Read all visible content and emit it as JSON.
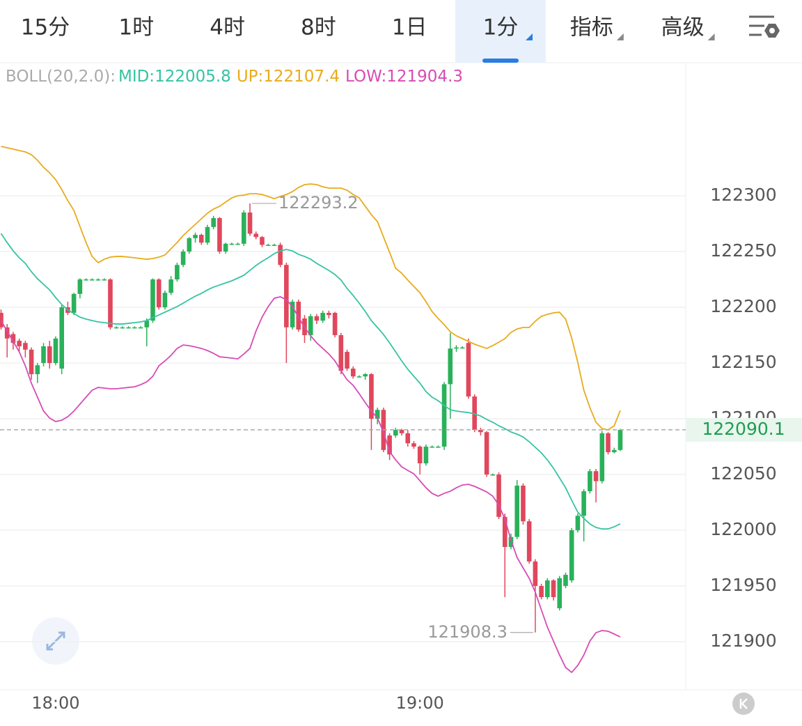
{
  "tabs": {
    "items": [
      {
        "label": "15分",
        "dropdown": false
      },
      {
        "label": "1时",
        "dropdown": false
      },
      {
        "label": "4时",
        "dropdown": false
      },
      {
        "label": "8时",
        "dropdown": false
      },
      {
        "label": "1日",
        "dropdown": false
      },
      {
        "label": "1分",
        "dropdown": true
      },
      {
        "label": "指标",
        "dropdown": true
      },
      {
        "label": "高级",
        "dropdown": true
      }
    ],
    "active": 5
  },
  "chart_data": {
    "type": "candlestick",
    "indicator": "BOLL(20,2.0):",
    "categories": [
      null,
      null,
      null,
      null,
      null,
      null,
      null,
      null,
      null,
      "18:00",
      null,
      null,
      null,
      null,
      null,
      null,
      null,
      null,
      null,
      null,
      null,
      null,
      null,
      null,
      null,
      null,
      null,
      null,
      null,
      null,
      null,
      null,
      null,
      null,
      null,
      null,
      null,
      null,
      null,
      null,
      null,
      null,
      null,
      null,
      null,
      null,
      null,
      null,
      null,
      null,
      null,
      null,
      null,
      null,
      null,
      null,
      null,
      null,
      null,
      null,
      null,
      null,
      null,
      null,
      null,
      null,
      null,
      null,
      null,
      "19:00",
      null,
      null,
      null,
      null,
      null,
      null,
      null,
      null,
      null,
      null,
      null,
      null,
      null,
      null,
      null,
      null,
      null,
      null,
      null,
      null,
      null,
      null,
      null,
      null,
      null,
      null,
      null,
      null,
      null,
      null,
      null,
      null,
      null
    ],
    "open": [
      122195,
      122182,
      122176,
      122170,
      122168,
      122162,
      122140,
      122150,
      122165,
      122150,
      122145,
      122200,
      122195,
      122212,
      122225,
      122225,
      122225,
      122225,
      122225,
      122182,
      122182,
      122182,
      122182,
      122182,
      122182,
      122188,
      122225,
      122200,
      122213,
      122225,
      122238,
      122250,
      122262,
      122265,
      122258,
      122272,
      122280,
      122250,
      122257,
      122257,
      122257,
      122285,
      122266,
      122263,
      122256,
      122256,
      122256,
      122238,
      122182,
      122205,
      122190,
      122175,
      122192,
      122188,
      122195,
      122195,
      122175,
      122160,
      122145,
      122138,
      122138,
      122140,
      122100,
      122108,
      122085,
      122085,
      122090,
      122087,
      122078,
      122075,
      122060,
      122075,
      122075,
      122075,
      122131,
      122163,
      122164,
      122168,
      122120,
      122090,
      122088,
      122050,
      122050,
      122012,
      121985,
      121994,
      122040,
      122008,
      121972,
      121950,
      121940,
      121955,
      121930,
      121950,
      121955,
      122000,
      122013,
      122035,
      122053,
      122044,
      122087,
      122070,
      122072
    ],
    "high": [
      122198,
      122185,
      122178,
      122172,
      122170,
      122164,
      122150,
      122168,
      122170,
      122174,
      122202,
      122205,
      122213,
      122226,
      122226,
      122226,
      122226,
      122226,
      122226,
      122183,
      122183,
      122183,
      122183,
      122183,
      122190,
      122226,
      122226,
      122215,
      122228,
      122240,
      122252,
      122263,
      122267,
      122266,
      122274,
      122282,
      122281,
      122258,
      122258,
      122258,
      122287,
      122293.2,
      122268,
      122264,
      122257,
      122257,
      122258,
      122240,
      122207,
      122207,
      122193,
      122194,
      122194,
      122197,
      122197,
      122196,
      122177,
      122162,
      122147,
      122139,
      122141,
      122141,
      122110,
      122110,
      122087,
      122092,
      122091,
      122090,
      122080,
      122076,
      122077,
      122076,
      122076,
      122133,
      122177,
      122166,
      122165,
      122172,
      122122,
      122092,
      122089,
      122051,
      122052,
      122015,
      121997,
      122045,
      122042,
      122010,
      121974,
      121952,
      121957,
      121956,
      121959,
      121962,
      122002,
      122015,
      122037,
      122055,
      122055,
      122089,
      122088,
      122074,
      122091
    ],
    "low": [
      122180,
      122155,
      122162,
      122160,
      122155,
      122135,
      122132,
      122147,
      122145,
      122148,
      122140,
      122193,
      122193,
      122208,
      122224,
      122224,
      122224,
      122224,
      122180,
      122181,
      122181,
      122181,
      122181,
      122181,
      122165,
      122186,
      122198,
      122198,
      122211,
      122223,
      122236,
      122248,
      122258,
      122256,
      122256,
      122270,
      122248,
      122248,
      122256,
      122256,
      122255,
      122264,
      122261,
      122254,
      122255,
      122255,
      122236,
      122150,
      122180,
      122178,
      122168,
      122170,
      122185,
      122186,
      122190,
      122173,
      122140,
      122143,
      122136,
      122137,
      122135,
      122072,
      122095,
      122070,
      122063,
      122083,
      122085,
      122075,
      122073,
      122050,
      122058,
      122074,
      122074,
      122072,
      122100,
      122160,
      122163,
      122118,
      122088,
      122085,
      122048,
      122049,
      122010,
      121940,
      121983,
      121992,
      122005,
      121970,
      121908.3,
      121938,
      121938,
      121937,
      121928,
      121948,
      121953,
      121998,
      121990,
      122033,
      122025,
      122042,
      122068,
      122069,
      122071
    ],
    "close": [
      122182,
      122172,
      122168,
      122165,
      122162,
      122140,
      122148,
      122165,
      122150,
      122172,
      122200,
      122195,
      122212,
      122225,
      122225,
      122225,
      122225,
      122225,
      122182,
      122182,
      122182,
      122182,
      122182,
      122182,
      122188,
      122225,
      122200,
      122213,
      122225,
      122238,
      122250,
      122262,
      122265,
      122258,
      122272,
      122280,
      122250,
      122257,
      122257,
      122257,
      122285,
      122266,
      122263,
      122256,
      122256,
      122256,
      122238,
      122182,
      122205,
      122180,
      122175,
      122192,
      122188,
      122195,
      122193,
      122175,
      122143,
      122145,
      122138,
      122138,
      122140,
      122100,
      122108,
      122072,
      122068,
      122090,
      122087,
      122078,
      122075,
      122060,
      122075,
      122075,
      122075,
      122131,
      122163,
      122164,
      122164,
      122120,
      122090,
      122088,
      122050,
      122050,
      122012,
      121985,
      121994,
      122040,
      122008,
      121972,
      121950,
      121940,
      121955,
      121940,
      121957,
      121960,
      122000,
      122013,
      122035,
      122053,
      122044,
      122087,
      122070,
      122072,
      122090.1
    ],
    "up_color": "#2ab15a",
    "down_color": "#e0475c",
    "series": [
      {
        "name": "MID:",
        "color": "#35c3a2",
        "values": [
          122266.2,
          122258.1,
          122250.6,
          122244.4,
          122239.4,
          122231.9,
          122225.6,
          122220.6,
          122215.6,
          122208.7,
          122202.5,
          122197.5,
          122194.4,
          122191.2,
          122189.4,
          122188.1,
          122186.9,
          122186.2,
          122185.6,
          122185,
          122185,
          122185.6,
          122186.2,
          122186.9,
          122188.1,
          122190.6,
          122193.1,
          122195.6,
          122198.1,
          122200.6,
          122203.7,
          122206.9,
          122210,
          122212.5,
          122215.6,
          122218.1,
          122220,
          122221.9,
          122223.7,
          122226.2,
          122228.7,
          122233.1,
          122237.5,
          122241.2,
          122244.4,
          122248.1,
          122250.6,
          122251.9,
          122250.6,
          122247.5,
          122245.6,
          122243.1,
          122239.4,
          122236.2,
          122233.1,
          122229.4,
          122224.4,
          122216.9,
          122210.6,
          122203.7,
          122196.2,
          122188.1,
          122181.9,
          122175.6,
          122168.1,
          122160,
          122151.9,
          122144.4,
          122138.1,
          122131.9,
          122124.4,
          122119.4,
          122116.2,
          122111.9,
          122108.1,
          122106.9,
          122106.2,
          122105.6,
          122104.4,
          122102.5,
          122099.4,
          122096.9,
          122093.7,
          122091.2,
          122088.1,
          122086.2,
          122083.7,
          122079.4,
          122074.4,
          122069.4,
          122063.1,
          122055.6,
          122046.9,
          122038.1,
          122026.9,
          122016.2,
          122010.6,
          122005.6,
          122002.5,
          122001.2,
          122001.2,
          122003.1,
          122005.8
        ]
      },
      {
        "name": "UP:",
        "color": "#e8ab1c",
        "values": [
          122344.4,
          122343.1,
          122341.9,
          122340.6,
          122339.4,
          122336.9,
          122331.9,
          122325.6,
          122320.6,
          122314.4,
          122305.6,
          122295.6,
          122286.9,
          122272.5,
          122258.1,
          122245.6,
          122240,
          122243.1,
          122245,
          122245.6,
          122245.6,
          122245,
          122244.4,
          122243.7,
          122243.1,
          122243.7,
          122245,
          122246.9,
          122252.5,
          122258.1,
          122264.4,
          122269.4,
          122274.4,
          122279.4,
          122284.4,
          122288.1,
          122290.6,
          122294.4,
          122298.1,
          122300,
          122300.6,
          122301.9,
          122301.9,
          122301.2,
          122299.4,
          122297.5,
          122299.4,
          122301.2,
          122303.7,
          122307.5,
          122310,
          122310.6,
          122310,
          122308.1,
          122306.9,
          122306.9,
          122306.9,
          122305,
          122301.2,
          122298.1,
          122290.6,
          122283.1,
          122276.9,
          122263.1,
          122249.4,
          122235,
          122230.6,
          122224.4,
          122218.7,
          122213.1,
          122205,
          122196.2,
          122190,
          122184.4,
          122178.1,
          122174.4,
          122171.9,
          122169.4,
          122166.9,
          122165,
          122163.1,
          122165.6,
          122168.7,
          122171.9,
          122177.5,
          122180.6,
          122181.9,
          122181.9,
          122187.5,
          122191.9,
          122193.7,
          122195,
          122195.6,
          122189.4,
          122172.5,
          122150.6,
          122125.6,
          122110,
          122096.9,
          122091.2,
          122090,
          122093.7,
          122107.4
        ]
      },
      {
        "name": "LOW:",
        "color": "#d84bb4",
        "values": [
          122188.1,
          122178.7,
          122169.4,
          122160,
          122147.5,
          122131.9,
          122119.4,
          122106.9,
          122100.6,
          122097.5,
          122098.7,
          122101.9,
          122106.9,
          122113.1,
          122119.4,
          122125.6,
          122128.1,
          122127.5,
          122126.9,
          122126.9,
          122127.5,
          122128.1,
          122128.7,
          122130.6,
          122133.1,
          122138.1,
          122147.5,
          122151.9,
          122156.9,
          122163.1,
          122166.2,
          122165.6,
          122164.4,
          122163.1,
          122161.2,
          122158.7,
          122155.6,
          122155,
          122154.4,
          122153.7,
          122158.1,
          122163.1,
          122178.7,
          122191.2,
          122200.6,
          122208.1,
          122209.4,
          122206.9,
          122200.6,
          122191.2,
          122181.9,
          122174.4,
          122168.1,
          122163.1,
          122158.1,
          122151.9,
          122143.1,
          122135,
          122130,
          122122.5,
          122114.4,
          122106.9,
          122100.6,
          122088.1,
          122070.6,
          122063.1,
          122056.9,
          122053.7,
          122050.6,
          122044.4,
          122038.1,
          122033.1,
          122030.6,
          122033.1,
          122035,
          122038.1,
          122040.6,
          122041.2,
          122039.4,
          122036.9,
          122034.4,
          122030.6,
          122022.5,
          122010,
          121991.2,
          121975.6,
          121966.2,
          121956.9,
          121944.4,
          121928.7,
          121913.1,
          121900.6,
          121888.1,
          121876.9,
          121872.5,
          121878.7,
          121888.1,
          121900.6,
          121908.1,
          121910,
          121909.4,
          121906.9,
          121904.3
        ]
      }
    ],
    "ylim": [
      121856.9,
      122419.4
    ],
    "yticks": [
      122300,
      122250,
      122200,
      122150,
      122100,
      122050,
      122000,
      121950,
      121900
    ],
    "grid": true
  }
}
